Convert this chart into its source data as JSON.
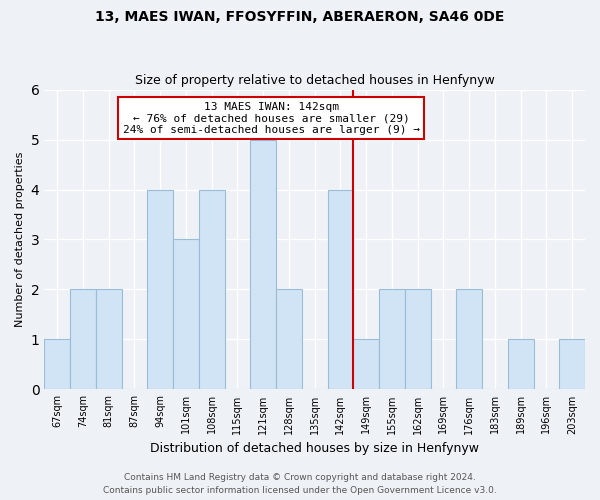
{
  "title": "13, MAES IWAN, FFOSYFFIN, ABERAERON, SA46 0DE",
  "subtitle": "Size of property relative to detached houses in Henfynyw",
  "xlabel": "Distribution of detached houses by size in Henfynyw",
  "ylabel": "Number of detached properties",
  "bar_labels": [
    "67sqm",
    "74sqm",
    "81sqm",
    "87sqm",
    "94sqm",
    "101sqm",
    "108sqm",
    "115sqm",
    "121sqm",
    "128sqm",
    "135sqm",
    "142sqm",
    "149sqm",
    "155sqm",
    "162sqm",
    "169sqm",
    "176sqm",
    "183sqm",
    "189sqm",
    "196sqm",
    "203sqm"
  ],
  "bar_heights": [
    1,
    2,
    2,
    0,
    4,
    3,
    4,
    0,
    5,
    2,
    0,
    4,
    1,
    2,
    2,
    0,
    2,
    0,
    1,
    0,
    1
  ],
  "bar_color": "#d0e4f5",
  "bar_edge_color": "#9bbcd6",
  "reference_line_x_label": "142sqm",
  "reference_line_color": "#cc0000",
  "annotation_title": "13 MAES IWAN: 142sqm",
  "annotation_line1": "← 76% of detached houses are smaller (29)",
  "annotation_line2": "24% of semi-detached houses are larger (9) →",
  "annotation_box_color": "#ffffff",
  "annotation_box_edge_color": "#cc0000",
  "ylim": [
    0,
    6
  ],
  "yticks": [
    0,
    1,
    2,
    3,
    4,
    5,
    6
  ],
  "footer_line1": "Contains HM Land Registry data © Crown copyright and database right 2024.",
  "footer_line2": "Contains public sector information licensed under the Open Government Licence v3.0.",
  "bg_color": "#eef2f7",
  "grid_color": "#ffffff",
  "title_fontsize": 10,
  "subtitle_fontsize": 9,
  "ylabel_fontsize": 8,
  "xlabel_fontsize": 9,
  "tick_fontsize": 7,
  "annotation_fontsize": 8,
  "footer_fontsize": 6.5
}
